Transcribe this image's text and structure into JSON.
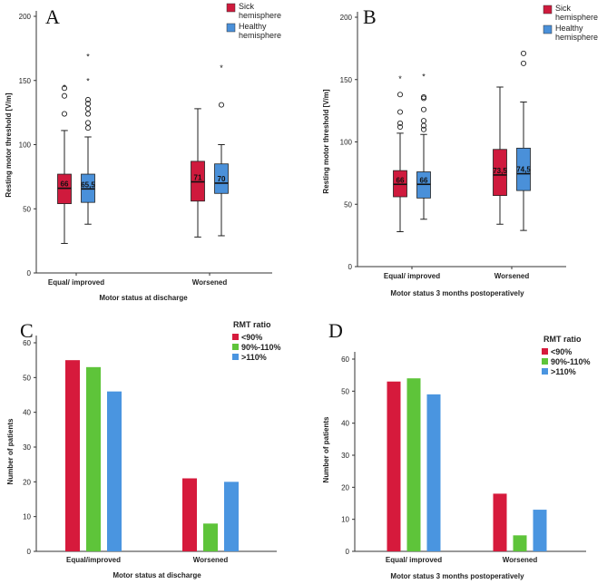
{
  "colors": {
    "sick": "#cf1a3d",
    "healthy": "#4a90d9",
    "lt90": "#d61a3c",
    "b90_110": "#5ec43a",
    "gt110": "#4a95e0"
  },
  "chart_data": [
    {
      "panel": "A",
      "type": "box",
      "title": "",
      "xlabel": "Motor status at discharge",
      "ylabel": "Resting motor threshold [V/m]",
      "ylim": [
        0,
        200
      ],
      "yticks": [
        0,
        50,
        100,
        150,
        200
      ],
      "categories": [
        "Equal/ improved",
        "Worsened"
      ],
      "legend": [
        "Sick hemisphere",
        "Healthy hemisphere"
      ],
      "series": [
        {
          "name": "Sick hemisphere",
          "boxes": [
            {
              "min": 23,
              "q1": 54,
              "median": 66,
              "q3": 77,
              "max": 111,
              "median_label": "66",
              "outliers_circle": [
                124,
                138,
                144
              ],
              "outliers_star": [
                146
              ]
            },
            {
              "min": 28,
              "q1": 56,
              "median": 71,
              "q3": 87,
              "max": 128,
              "median_label": "71",
              "outliers_circle": [],
              "outliers_star": []
            }
          ]
        },
        {
          "name": "Healthy hemisphere",
          "boxes": [
            {
              "min": 38,
              "q1": 55,
              "median": 65.5,
              "q3": 77,
              "max": 106,
              "median_label": "65,5",
              "outliers_circle": [
                113,
                117,
                124,
                128,
                132,
                135
              ],
              "outliers_star": [
                151,
                170
              ]
            },
            {
              "min": 29,
              "q1": 62,
              "median": 70,
              "q3": 85,
              "max": 100,
              "median_label": "70",
              "outliers_circle": [
                131
              ],
              "outliers_star": [
                161
              ]
            }
          ]
        }
      ]
    },
    {
      "panel": "B",
      "type": "box",
      "title": "",
      "xlabel": "Motor status 3 months postoperatively",
      "ylabel": "Resting motor threshold [V/m]",
      "ylim": [
        0,
        200
      ],
      "yticks": [
        0,
        50,
        100,
        150,
        200
      ],
      "categories": [
        "Equal/ improved",
        "Worsened"
      ],
      "legend": [
        "Sick hemisphere",
        "Healthy hemisphere"
      ],
      "series": [
        {
          "name": "Sick hemisphere",
          "boxes": [
            {
              "min": 28,
              "q1": 56,
              "median": 66,
              "q3": 77,
              "max": 107,
              "median_label": "66",
              "outliers_circle": [
                112,
                115,
                124,
                138
              ],
              "outliers_star": [
                152
              ]
            },
            {
              "min": 34,
              "q1": 57,
              "median": 73.5,
              "q3": 94,
              "max": 144,
              "median_label": "73,5",
              "outliers_circle": [],
              "outliers_star": []
            }
          ]
        },
        {
          "name": "Healthy hemisphere",
          "boxes": [
            {
              "min": 38,
              "q1": 55,
              "median": 66,
              "q3": 76,
              "max": 106,
              "median_label": "66",
              "outliers_circle": [
                110,
                113,
                117,
                126,
                135,
                136
              ],
              "outliers_star": [
                154
              ]
            },
            {
              "min": 29,
              "q1": 61,
              "median": 74.5,
              "q3": 95,
              "max": 132,
              "median_label": "74,5",
              "outliers_circle": [
                163,
                171
              ],
              "outliers_star": []
            }
          ]
        }
      ]
    },
    {
      "panel": "C",
      "type": "bar",
      "xlabel": "Motor status at discharge",
      "ylabel": "Number of patients",
      "ylim": [
        0,
        60
      ],
      "yticks": [
        0,
        10,
        20,
        30,
        40,
        50,
        60
      ],
      "categories": [
        "Equal/improved",
        "Worsened"
      ],
      "legend_title": "RMT ratio",
      "series": [
        {
          "name": "<90%",
          "values": [
            55,
            21
          ]
        },
        {
          "name": "90%-110%",
          "values": [
            53,
            8
          ]
        },
        {
          "name": ">110%",
          "values": [
            46,
            20
          ]
        }
      ]
    },
    {
      "panel": "D",
      "type": "bar",
      "xlabel": "Motor status 3 months postoperatively",
      "ylabel": "Number of patients",
      "ylim": [
        0,
        60
      ],
      "yticks": [
        0,
        10,
        20,
        30,
        40,
        50,
        60
      ],
      "categories": [
        "Equal/ improved",
        "Worsened"
      ],
      "legend_title": "RMT ratio",
      "series": [
        {
          "name": "<90%",
          "values": [
            53,
            18
          ]
        },
        {
          "name": "90%-110%",
          "values": [
            54,
            5
          ]
        },
        {
          "name": ">110%",
          "values": [
            49,
            13
          ]
        }
      ]
    }
  ]
}
